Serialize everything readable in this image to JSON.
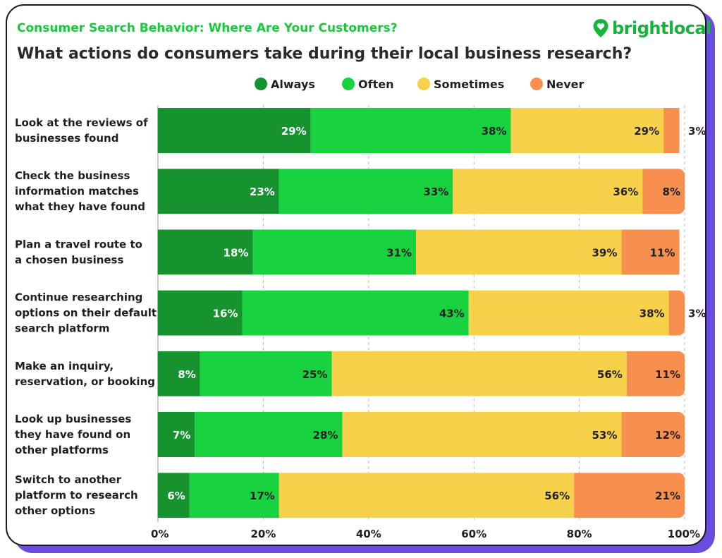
{
  "header": {
    "subtitle": "Consumer Search Behavior: Where Are Your Customers?",
    "title": "What actions do consumers take during their local business research?",
    "logo_text": "brightlocal"
  },
  "colors": {
    "brand_green": "#19c93c",
    "shadow_purple": "#6b4be0"
  },
  "chart_data": {
    "type": "bar",
    "orientation": "horizontal",
    "stacked": true,
    "categories": [
      [
        "Look at the reviews of",
        "businesses found"
      ],
      [
        "Check the business",
        "information matches",
        "what they have found"
      ],
      [
        "Plan a travel route to",
        "a chosen business"
      ],
      [
        "Continue researching",
        "options on their default",
        "search platform"
      ],
      [
        "Make an inquiry,",
        "reservation, or booking"
      ],
      [
        "Look up businesses",
        "they have found on",
        "other platforms"
      ],
      [
        "Switch to another",
        "platform to research",
        "other options"
      ]
    ],
    "series": [
      {
        "name": "Always",
        "color": "#16932f",
        "label_color": "#ffffff",
        "values": [
          29,
          23,
          18,
          16,
          8,
          7,
          6
        ]
      },
      {
        "name": "Often",
        "color": "#18d23f",
        "label_color": "#1f1f1f",
        "values": [
          38,
          33,
          31,
          43,
          25,
          28,
          17
        ]
      },
      {
        "name": "Sometimes",
        "color": "#f7d14a",
        "label_color": "#1f1f1f",
        "values": [
          29,
          36,
          39,
          38,
          56,
          53,
          56
        ]
      },
      {
        "name": "Never",
        "color": "#f78f4e",
        "label_color": "#1f1f1f",
        "values": [
          3,
          8,
          11,
          3,
          11,
          12,
          21
        ]
      }
    ],
    "value_suffix": "%",
    "xlim": [
      0,
      100
    ],
    "x_ticks": [
      0,
      20,
      40,
      60,
      80,
      100
    ],
    "x_tick_labels": [
      "0%",
      "20%",
      "40%",
      "60%",
      "80%",
      "100%"
    ],
    "grid": "vertical dashed",
    "legend_position": "top"
  }
}
